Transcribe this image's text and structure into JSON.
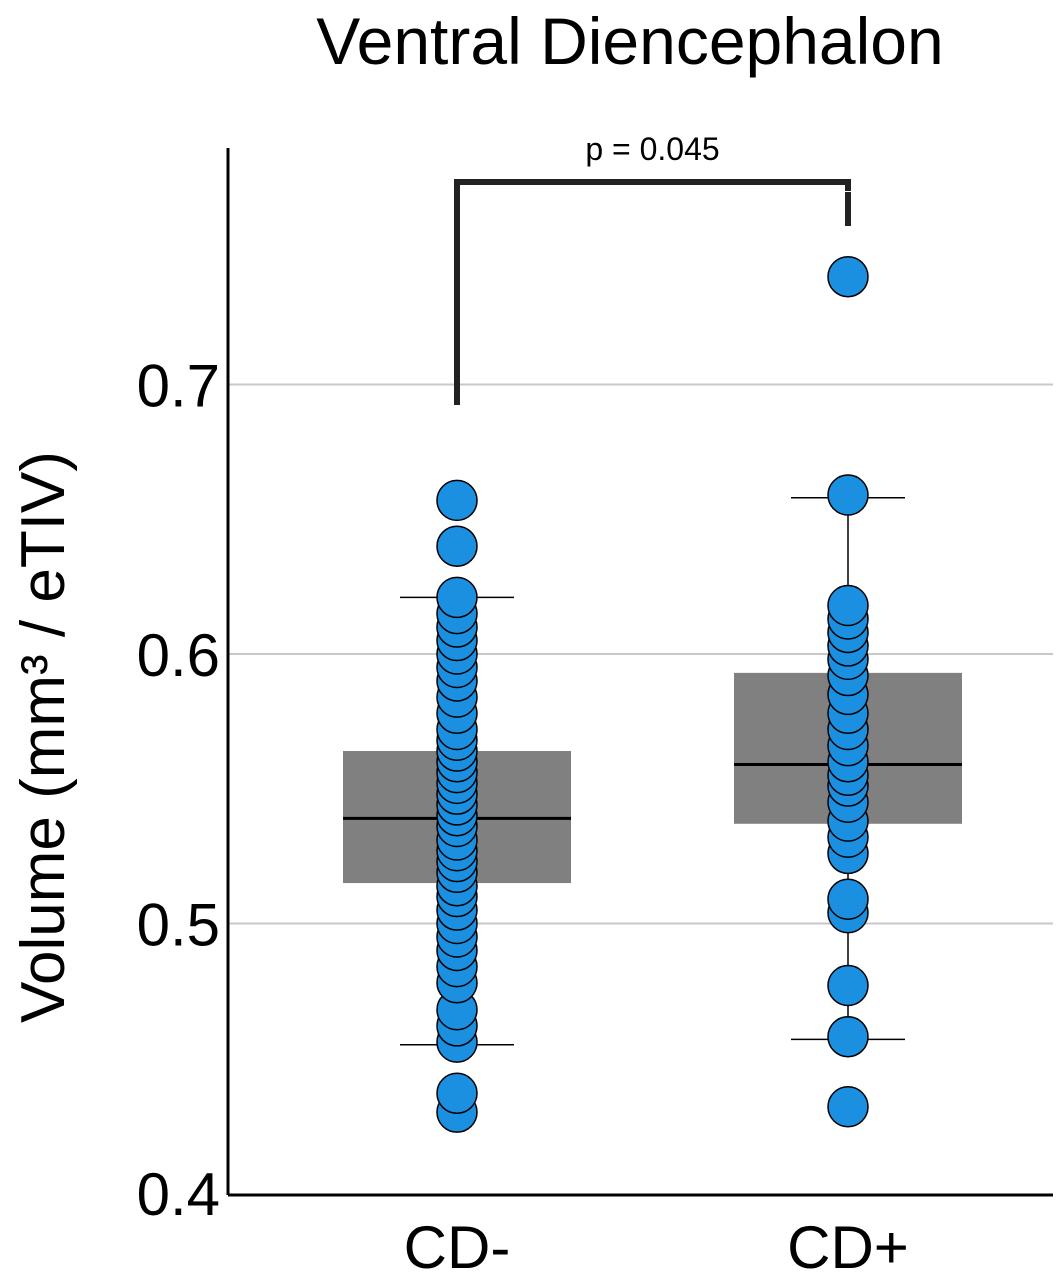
{
  "chart_data": {
    "type": "box",
    "title": "Ventral Diencephalon",
    "xlabel": "",
    "ylabel": "Volume (mm³ / eTIV)",
    "ylim": [
      0.4,
      0.78
    ],
    "yticks": [
      0.4,
      0.5,
      0.6,
      0.7
    ],
    "ytick_labels": [
      "0.4",
      "0.5",
      "0.6",
      "0.7"
    ],
    "grid": "horizontal",
    "categories": [
      "CD-",
      "CD+"
    ],
    "boxes": [
      {
        "category": "CD-",
        "q1": 0.515,
        "median": 0.539,
        "q3": 0.564,
        "whisker_low": 0.455,
        "whisker_high": 0.621
      },
      {
        "category": "CD+",
        "q1": 0.537,
        "median": 0.559,
        "q3": 0.593,
        "whisker_low": 0.457,
        "whisker_high": 0.658
      }
    ],
    "points": [
      {
        "category": "CD-",
        "values": [
          0.43,
          0.437,
          0.456,
          0.462,
          0.468,
          0.478,
          0.484,
          0.49,
          0.495,
          0.5,
          0.505,
          0.51,
          0.514,
          0.519,
          0.523,
          0.527,
          0.531,
          0.536,
          0.54,
          0.544,
          0.548,
          0.552,
          0.556,
          0.56,
          0.564,
          0.568,
          0.572,
          0.578,
          0.584,
          0.59,
          0.595,
          0.6,
          0.605,
          0.61,
          0.615,
          0.621,
          0.64,
          0.657
        ]
      },
      {
        "category": "CD+",
        "values": [
          0.432,
          0.458,
          0.477,
          0.504,
          0.509,
          0.526,
          0.532,
          0.538,
          0.545,
          0.551,
          0.555,
          0.56,
          0.566,
          0.572,
          0.578,
          0.585,
          0.592,
          0.598,
          0.603,
          0.608,
          0.613,
          0.618,
          0.659,
          0.74
        ]
      }
    ],
    "annotation": {
      "text": "p = 0.045",
      "from": "CD-",
      "to": "CD+"
    },
    "colors": {
      "point": "#1b8fe0",
      "box": "#808080",
      "median": "#000000",
      "grid": "#c8c8c8",
      "axis": "#000000",
      "bracket": "#222222"
    }
  }
}
